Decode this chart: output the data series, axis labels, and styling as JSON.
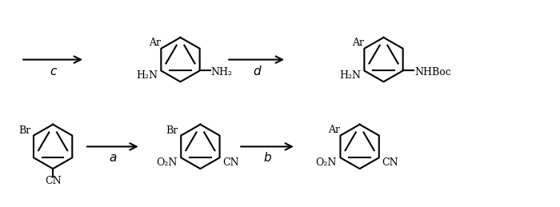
{
  "bg_color": "#ffffff",
  "arrow_color": "#000000",
  "line_color": "#000000",
  "step_labels": [
    "a",
    "b",
    "c",
    "d"
  ],
  "figsize": [
    7.0,
    2.59
  ],
  "dpi": 100
}
